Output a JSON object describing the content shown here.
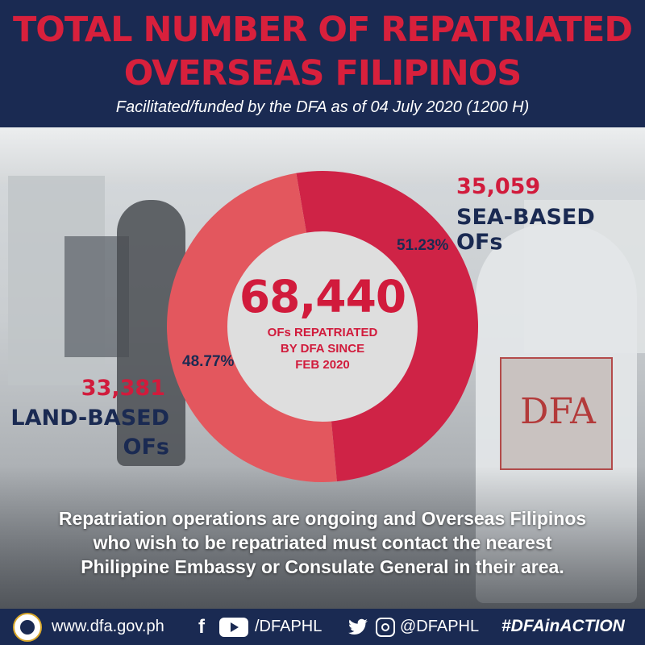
{
  "header": {
    "title_line1": "TOTAL NUMBER OF REPATRIATED",
    "title_line2": "OVERSEAS FILIPINOS",
    "subtitle": "Facilitated/funded by the DFA as of  04 July 2020 (1200 H)"
  },
  "background": {
    "sign_text": "DFA"
  },
  "chart_data": {
    "type": "pie",
    "donut": true,
    "categories": [
      "SEA-BASED OFs",
      "LAND-BASED OFs"
    ],
    "values": [
      35059,
      33381
    ],
    "value_labels": [
      "35,059",
      "33,381"
    ],
    "percent_labels": [
      "51.23%",
      "48.77%"
    ],
    "colors": [
      "#cf2346",
      "#e3575e"
    ],
    "center_total": "68,440",
    "center_caption": [
      "OFs REPATRIATED",
      "BY DFA  SINCE",
      "FEB 2020"
    ]
  },
  "labels": {
    "land_label_line1": "LAND-BASED",
    "land_label_line2": "OFs"
  },
  "note": {
    "line1": "Repatriation operations are ongoing and Overseas Filipinos",
    "line2": "who wish to be repatriated must contact the nearest",
    "line3": "Philippine Embassy or Consulate General in their area."
  },
  "footer": {
    "website": "www.dfa.gov.ph",
    "facebook_icon": "f",
    "handle_fb_yt": "/DFAPHL",
    "handle_tw_ig": "@DFAPHL",
    "hashtag": "#DFAinACTION"
  },
  "colors": {
    "navy": "#1a2a52",
    "title_red": "#d8203c",
    "number_red": "#d11b3c"
  }
}
